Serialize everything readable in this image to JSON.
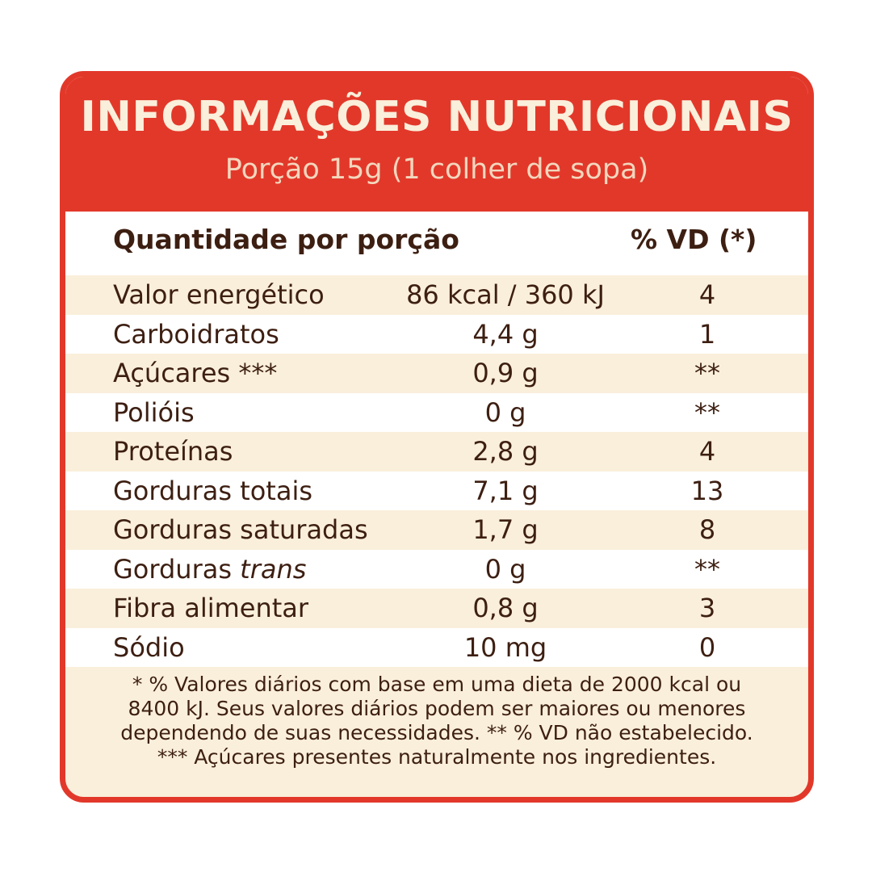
{
  "title": "INFORMAÇÕES NUTRICIONAIS",
  "subtitle": "Porção 15g (1 colher de sopa)",
  "columns": {
    "quantity": "Quantidade por porção",
    "vd": "% VD (*)"
  },
  "rows": [
    {
      "name": "Valor energético",
      "name_italic": "",
      "amount": "86 kcal / 360 kJ",
      "vd": "4"
    },
    {
      "name": "Carboidratos",
      "name_italic": "",
      "amount": "4,4 g",
      "vd": "1"
    },
    {
      "name": "Açúcares ***",
      "name_italic": "",
      "amount": "0,9 g",
      "vd": "**"
    },
    {
      "name": "Polióis",
      "name_italic": "",
      "amount": "0 g",
      "vd": "**"
    },
    {
      "name": "Proteínas",
      "name_italic": "",
      "amount": "2,8 g",
      "vd": "4"
    },
    {
      "name": "Gorduras totais",
      "name_italic": "",
      "amount": "7,1 g",
      "vd": "13"
    },
    {
      "name": "Gorduras saturadas",
      "name_italic": "",
      "amount": "1,7 g",
      "vd": "8"
    },
    {
      "name": "Gorduras ",
      "name_italic": "trans",
      "amount": "0 g",
      "vd": "**"
    },
    {
      "name": "Fibra alimentar",
      "name_italic": "",
      "amount": "0,8 g",
      "vd": "3"
    },
    {
      "name": "Sódio",
      "name_italic": "",
      "amount": "10 mg",
      "vd": "0"
    }
  ],
  "footnotes": [
    "* % Valores diários com base em uma dieta de 2000 kcal ou",
    "8400 kJ. Seus valores diários podem ser maiores ou menores",
    "dependendo de suas necessidades. ** % VD não estabelecido.",
    "*** Açúcares presentes naturalmente nos ingredientes."
  ],
  "colors": {
    "accent": "#e2382a",
    "cream": "#faefdb",
    "text": "#3d1f12"
  }
}
